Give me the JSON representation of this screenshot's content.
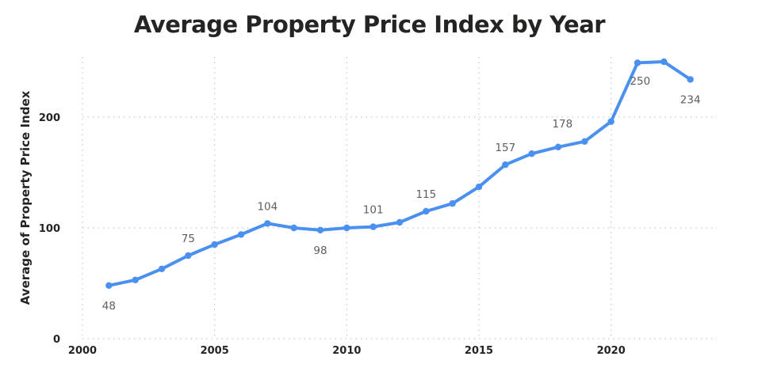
{
  "chart_data": {
    "type": "line",
    "title": "Average Property Price Index by Year",
    "xlabel": "",
    "ylabel": "Average of Property Price Index",
    "xlim": [
      2000,
      2024
    ],
    "ylim": [
      0,
      250
    ],
    "x_ticks": [
      2000,
      2005,
      2010,
      2015,
      2020
    ],
    "y_ticks": [
      0,
      100,
      200
    ],
    "grid": true,
    "line_color": "#4a90f0",
    "series": [
      {
        "x": [
          2001,
          2002,
          2003,
          2004,
          2005,
          2006,
          2007,
          2008,
          2009,
          2010,
          2011,
          2012,
          2013,
          2014,
          2015,
          2016,
          2017,
          2018,
          2019,
          2020,
          2021,
          2022,
          2023
        ],
        "values": [
          48,
          53,
          63,
          75,
          85,
          94,
          104,
          100,
          98,
          100,
          101,
          105,
          115,
          122,
          137,
          157,
          167,
          173,
          178,
          196,
          249,
          250,
          234
        ]
      }
    ],
    "data_labels": [
      {
        "x": 2001,
        "text": "48",
        "position": "below"
      },
      {
        "x": 2004,
        "text": "75",
        "position": "above"
      },
      {
        "x": 2007,
        "text": "104",
        "position": "above"
      },
      {
        "x": 2009,
        "text": "98",
        "position": "below"
      },
      {
        "x": 2011,
        "text": "101",
        "position": "above"
      },
      {
        "x": 2013,
        "text": "115",
        "position": "above"
      },
      {
        "x": 2016,
        "text": "157",
        "position": "above"
      },
      {
        "x": 2019,
        "text": "178",
        "position": "above-left"
      },
      {
        "x": 2022,
        "text": "250",
        "position": "below-left"
      },
      {
        "x": 2023,
        "text": "234",
        "position": "below"
      }
    ]
  }
}
